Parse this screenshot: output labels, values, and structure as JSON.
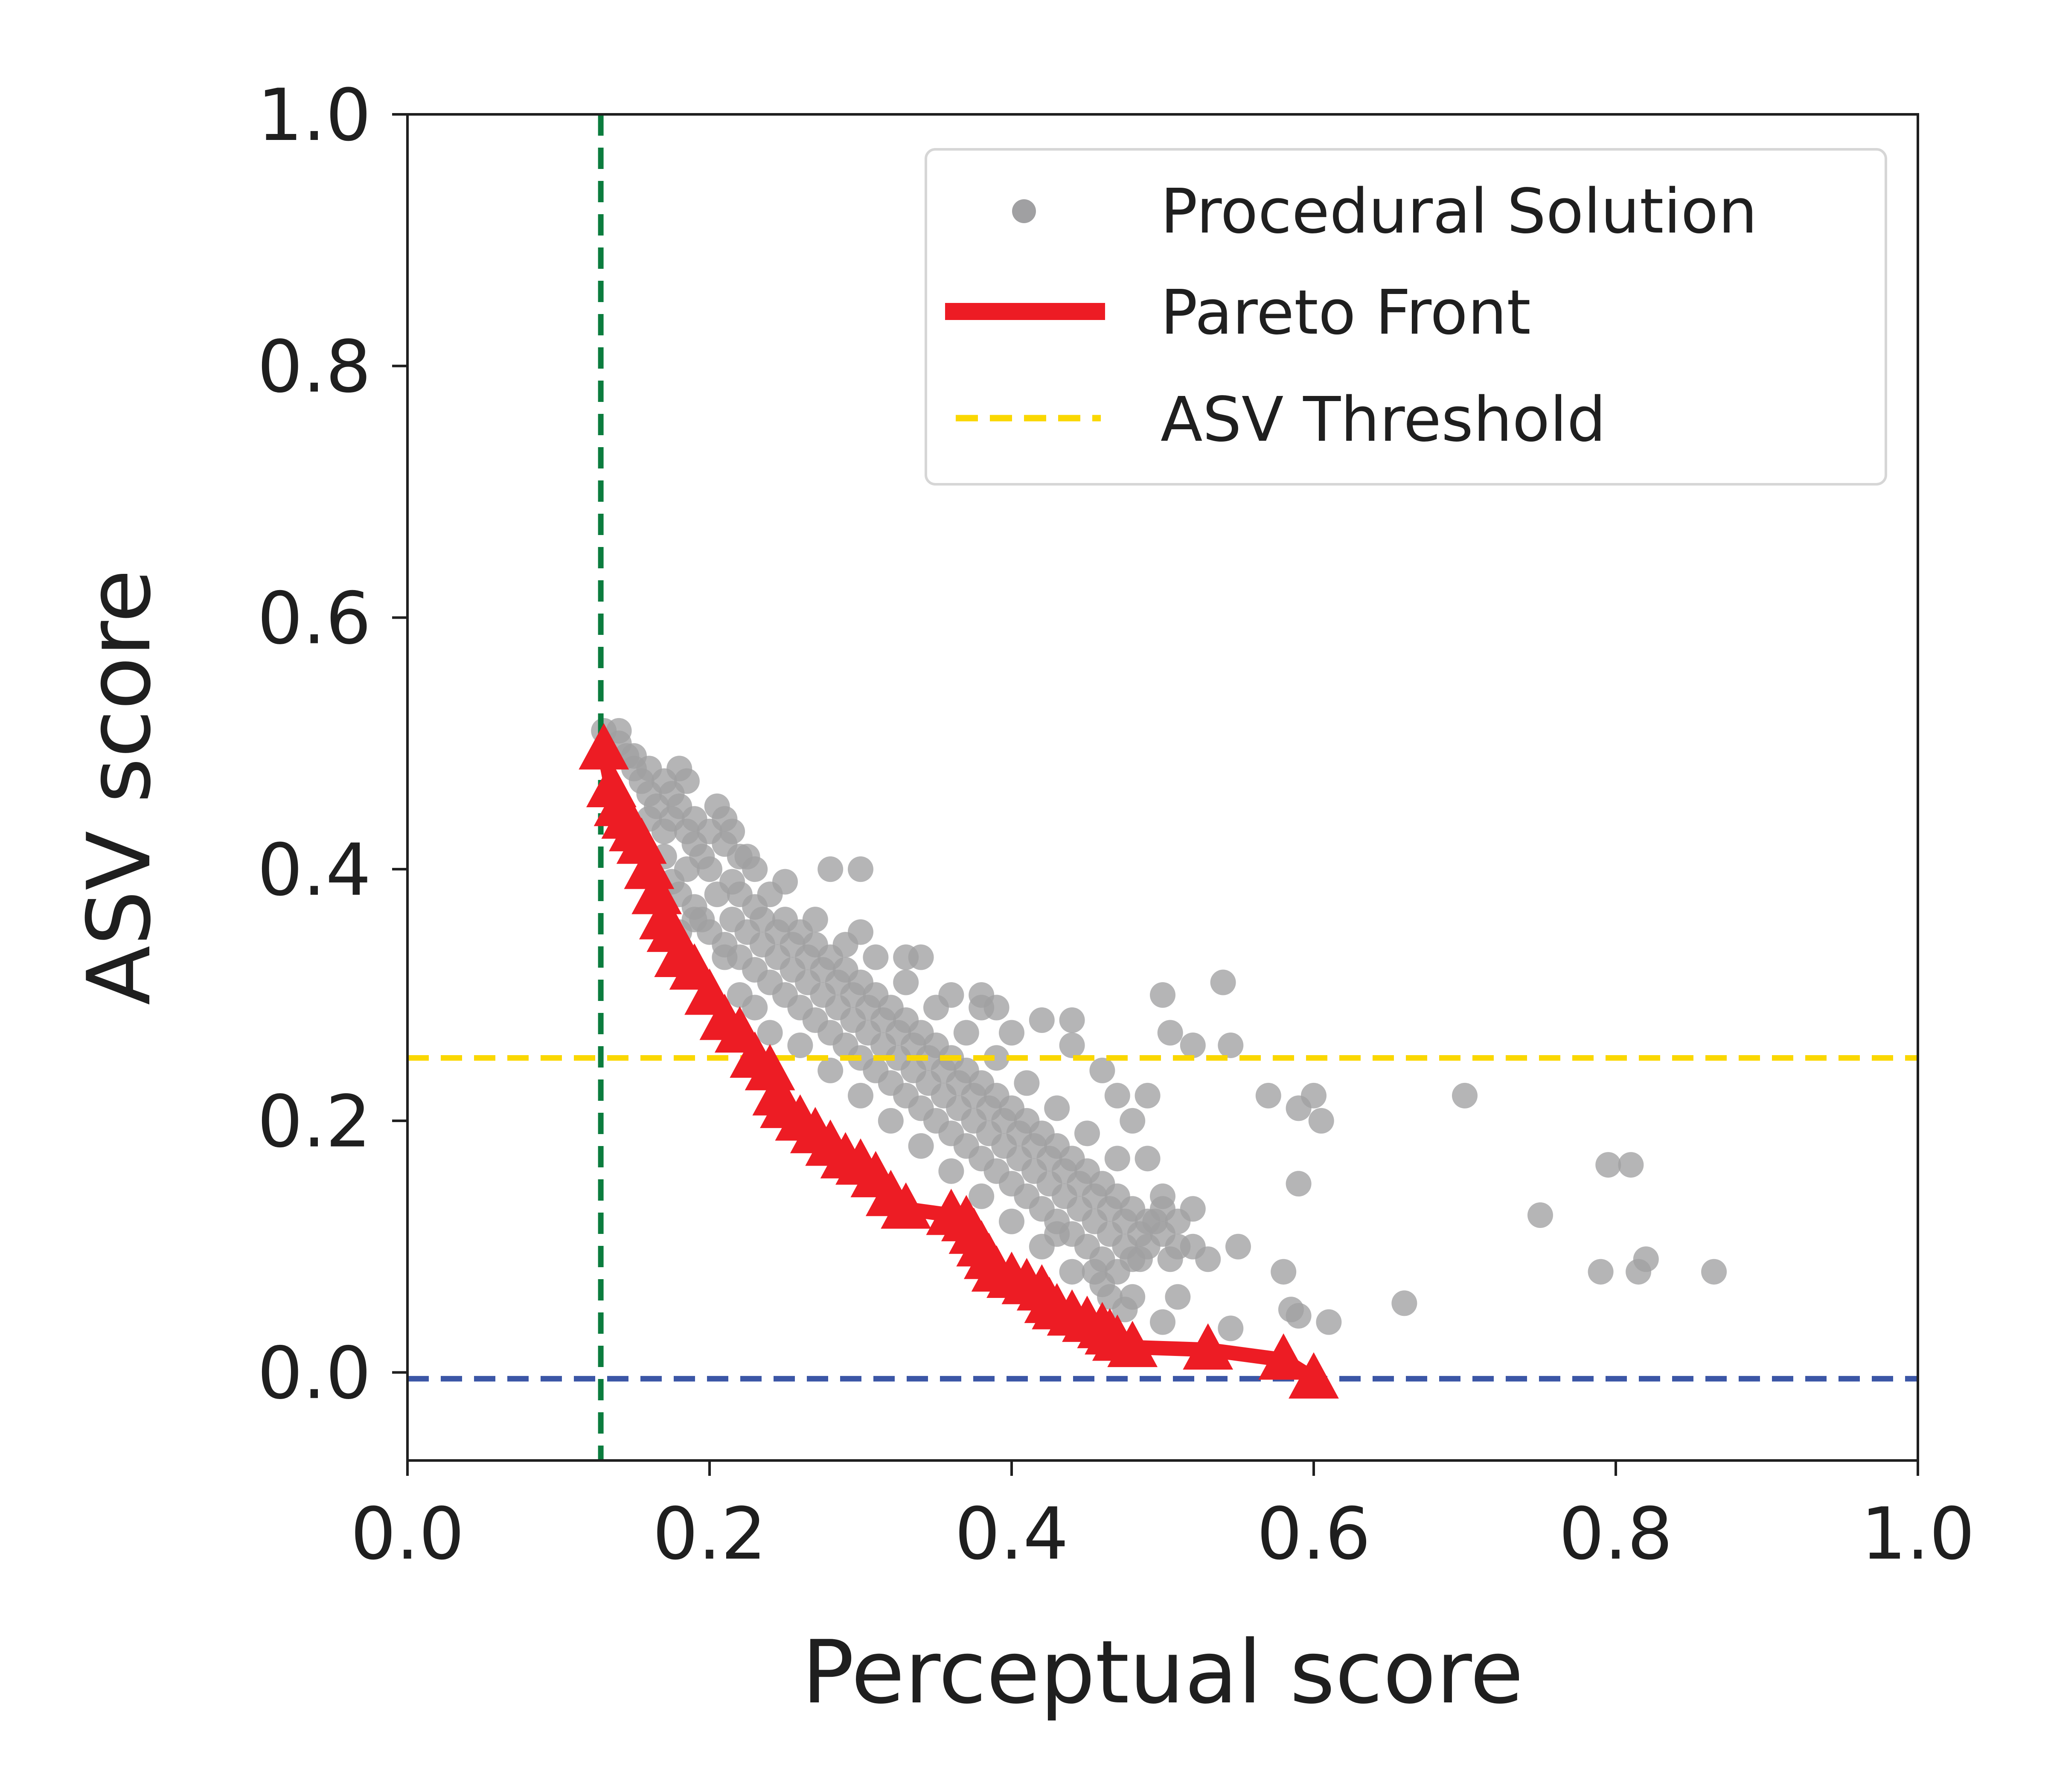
{
  "chart_data": {
    "type": "scatter",
    "title": "",
    "xlabel": "Perceptual score",
    "ylabel": "ASV score",
    "xlim": [
      0.0,
      1.0
    ],
    "ylim": [
      -0.07,
      1.0
    ],
    "x_ticks": [
      0.0,
      0.2,
      0.4,
      0.6,
      0.8,
      1.0
    ],
    "y_ticks": [
      0.0,
      0.2,
      0.4,
      0.6,
      0.8,
      1.0
    ],
    "x_tick_labels": [
      "0.0",
      "0.2",
      "0.4",
      "0.6",
      "0.8",
      "1.0"
    ],
    "y_tick_labels": [
      "0.0",
      "0.2",
      "0.4",
      "0.6",
      "0.8",
      "1.0"
    ],
    "grid": false,
    "legend_position": "upper right",
    "series": [
      {
        "name": "Procedural Solution",
        "kind": "scatter",
        "color": "#a0a0a2",
        "points": [
          [
            0.13,
            0.51
          ],
          [
            0.14,
            0.5
          ],
          [
            0.145,
            0.49
          ],
          [
            0.15,
            0.48
          ],
          [
            0.155,
            0.47
          ],
          [
            0.16,
            0.46
          ],
          [
            0.165,
            0.45
          ],
          [
            0.17,
            0.47
          ],
          [
            0.175,
            0.44
          ],
          [
            0.18,
            0.48
          ],
          [
            0.185,
            0.43
          ],
          [
            0.19,
            0.42
          ],
          [
            0.195,
            0.41
          ],
          [
            0.2,
            0.4
          ],
          [
            0.205,
            0.45
          ],
          [
            0.21,
            0.44
          ],
          [
            0.215,
            0.39
          ],
          [
            0.22,
            0.38
          ],
          [
            0.225,
            0.41
          ],
          [
            0.23,
            0.37
          ],
          [
            0.17,
            0.41
          ],
          [
            0.175,
            0.39
          ],
          [
            0.18,
            0.38
          ],
          [
            0.185,
            0.4
          ],
          [
            0.19,
            0.37
          ],
          [
            0.195,
            0.36
          ],
          [
            0.2,
            0.35
          ],
          [
            0.205,
            0.38
          ],
          [
            0.21,
            0.34
          ],
          [
            0.215,
            0.36
          ],
          [
            0.22,
            0.33
          ],
          [
            0.225,
            0.35
          ],
          [
            0.23,
            0.32
          ],
          [
            0.235,
            0.34
          ],
          [
            0.24,
            0.31
          ],
          [
            0.245,
            0.33
          ],
          [
            0.25,
            0.3
          ],
          [
            0.255,
            0.32
          ],
          [
            0.26,
            0.29
          ],
          [
            0.265,
            0.31
          ],
          [
            0.27,
            0.28
          ],
          [
            0.275,
            0.3
          ],
          [
            0.28,
            0.27
          ],
          [
            0.285,
            0.29
          ],
          [
            0.29,
            0.26
          ],
          [
            0.295,
            0.28
          ],
          [
            0.3,
            0.25
          ],
          [
            0.305,
            0.27
          ],
          [
            0.31,
            0.24
          ],
          [
            0.315,
            0.26
          ],
          [
            0.32,
            0.23
          ],
          [
            0.325,
            0.25
          ],
          [
            0.33,
            0.22
          ],
          [
            0.335,
            0.24
          ],
          [
            0.34,
            0.21
          ],
          [
            0.345,
            0.23
          ],
          [
            0.35,
            0.2
          ],
          [
            0.355,
            0.22
          ],
          [
            0.36,
            0.19
          ],
          [
            0.365,
            0.21
          ],
          [
            0.37,
            0.18
          ],
          [
            0.375,
            0.2
          ],
          [
            0.38,
            0.17
          ],
          [
            0.385,
            0.19
          ],
          [
            0.39,
            0.16
          ],
          [
            0.395,
            0.18
          ],
          [
            0.4,
            0.15
          ],
          [
            0.405,
            0.17
          ],
          [
            0.41,
            0.14
          ],
          [
            0.415,
            0.16
          ],
          [
            0.42,
            0.13
          ],
          [
            0.425,
            0.15
          ],
          [
            0.43,
            0.12
          ],
          [
            0.435,
            0.14
          ],
          [
            0.44,
            0.11
          ],
          [
            0.445,
            0.13
          ],
          [
            0.45,
            0.1
          ],
          [
            0.455,
            0.12
          ],
          [
            0.46,
            0.09
          ],
          [
            0.465,
            0.11
          ],
          [
            0.47,
            0.08
          ],
          [
            0.475,
            0.1
          ],
          [
            0.48,
            0.09
          ],
          [
            0.485,
            0.11
          ],
          [
            0.49,
            0.1
          ],
          [
            0.495,
            0.12
          ],
          [
            0.5,
            0.11
          ],
          [
            0.505,
            0.09
          ],
          [
            0.51,
            0.1
          ],
          [
            0.5,
            0.13
          ],
          [
            0.23,
            0.4
          ],
          [
            0.24,
            0.38
          ],
          [
            0.25,
            0.36
          ],
          [
            0.26,
            0.35
          ],
          [
            0.27,
            0.34
          ],
          [
            0.28,
            0.33
          ],
          [
            0.29,
            0.32
          ],
          [
            0.3,
            0.31
          ],
          [
            0.31,
            0.3
          ],
          [
            0.32,
            0.29
          ],
          [
            0.33,
            0.28
          ],
          [
            0.34,
            0.27
          ],
          [
            0.35,
            0.26
          ],
          [
            0.36,
            0.25
          ],
          [
            0.37,
            0.24
          ],
          [
            0.38,
            0.23
          ],
          [
            0.39,
            0.22
          ],
          [
            0.4,
            0.21
          ],
          [
            0.41,
            0.2
          ],
          [
            0.42,
            0.19
          ],
          [
            0.43,
            0.18
          ],
          [
            0.44,
            0.17
          ],
          [
            0.45,
            0.16
          ],
          [
            0.46,
            0.15
          ],
          [
            0.47,
            0.14
          ],
          [
            0.48,
            0.13
          ],
          [
            0.49,
            0.12
          ],
          [
            0.2,
            0.43
          ],
          [
            0.21,
            0.42
          ],
          [
            0.22,
            0.41
          ],
          [
            0.25,
            0.39
          ],
          [
            0.27,
            0.36
          ],
          [
            0.29,
            0.34
          ],
          [
            0.31,
            0.33
          ],
          [
            0.33,
            0.31
          ],
          [
            0.35,
            0.29
          ],
          [
            0.37,
            0.27
          ],
          [
            0.39,
            0.25
          ],
          [
            0.41,
            0.23
          ],
          [
            0.43,
            0.21
          ],
          [
            0.45,
            0.19
          ],
          [
            0.47,
            0.17
          ],
          [
            0.24,
            0.27
          ],
          [
            0.26,
            0.26
          ],
          [
            0.28,
            0.24
          ],
          [
            0.3,
            0.22
          ],
          [
            0.32,
            0.2
          ],
          [
            0.34,
            0.18
          ],
          [
            0.36,
            0.16
          ],
          [
            0.38,
            0.14
          ],
          [
            0.4,
            0.12
          ],
          [
            0.42,
            0.1
          ],
          [
            0.44,
            0.08
          ],
          [
            0.46,
            0.07
          ],
          [
            0.48,
            0.06
          ],
          [
            0.21,
            0.33
          ],
          [
            0.22,
            0.3
          ],
          [
            0.23,
            0.29
          ],
          [
            0.19,
            0.36
          ],
          [
            0.18,
            0.35
          ],
          [
            0.28,
            0.4
          ],
          [
            0.3,
            0.35
          ],
          [
            0.34,
            0.33
          ],
          [
            0.36,
            0.3
          ],
          [
            0.38,
            0.29
          ],
          [
            0.4,
            0.27
          ],
          [
            0.42,
            0.28
          ],
          [
            0.44,
            0.26
          ],
          [
            0.46,
            0.24
          ],
          [
            0.47,
            0.22
          ],
          [
            0.49,
            0.22
          ],
          [
            0.48,
            0.2
          ],
          [
            0.49,
            0.17
          ],
          [
            0.5,
            0.14
          ],
          [
            0.51,
            0.12
          ],
          [
            0.52,
            0.13
          ],
          [
            0.52,
            0.1
          ],
          [
            0.53,
            0.09
          ],
          [
            0.51,
            0.06
          ],
          [
            0.5,
            0.04
          ],
          [
            0.16,
            0.44
          ],
          [
            0.17,
            0.43
          ],
          [
            0.18,
            0.45
          ],
          [
            0.19,
            0.44
          ],
          [
            0.16,
            0.48
          ],
          [
            0.15,
            0.49
          ],
          [
            0.14,
            0.51
          ],
          [
            0.175,
            0.46
          ],
          [
            0.185,
            0.47
          ],
          [
            0.215,
            0.43
          ],
          [
            0.235,
            0.36
          ],
          [
            0.245,
            0.35
          ],
          [
            0.255,
            0.34
          ],
          [
            0.265,
            0.33
          ],
          [
            0.275,
            0.32
          ],
          [
            0.285,
            0.31
          ],
          [
            0.295,
            0.3
          ],
          [
            0.305,
            0.29
          ],
          [
            0.315,
            0.28
          ],
          [
            0.325,
            0.27
          ],
          [
            0.335,
            0.26
          ],
          [
            0.345,
            0.25
          ],
          [
            0.355,
            0.24
          ],
          [
            0.365,
            0.23
          ],
          [
            0.375,
            0.22
          ],
          [
            0.385,
            0.21
          ],
          [
            0.395,
            0.2
          ],
          [
            0.405,
            0.19
          ],
          [
            0.415,
            0.18
          ],
          [
            0.425,
            0.17
          ],
          [
            0.435,
            0.16
          ],
          [
            0.445,
            0.15
          ],
          [
            0.455,
            0.14
          ],
          [
            0.465,
            0.13
          ],
          [
            0.475,
            0.12
          ],
          [
            0.485,
            0.09
          ],
          [
            0.455,
            0.08
          ],
          [
            0.465,
            0.06
          ],
          [
            0.475,
            0.05
          ],
          [
            0.43,
            0.11
          ],
          [
            0.54,
            0.31
          ],
          [
            0.545,
            0.26
          ],
          [
            0.5,
            0.3
          ],
          [
            0.505,
            0.27
          ],
          [
            0.52,
            0.26
          ],
          [
            0.57,
            0.22
          ],
          [
            0.59,
            0.21
          ],
          [
            0.6,
            0.22
          ],
          [
            0.605,
            0.2
          ],
          [
            0.59,
            0.15
          ],
          [
            0.55,
            0.1
          ],
          [
            0.58,
            0.08
          ],
          [
            0.585,
            0.05
          ],
          [
            0.59,
            0.045
          ],
          [
            0.61,
            0.04
          ],
          [
            0.545,
            0.035
          ],
          [
            0.66,
            0.055
          ],
          [
            0.7,
            0.22
          ],
          [
            0.75,
            0.125
          ],
          [
            0.79,
            0.08
          ],
          [
            0.795,
            0.165
          ],
          [
            0.81,
            0.165
          ],
          [
            0.815,
            0.08
          ],
          [
            0.82,
            0.09
          ],
          [
            0.865,
            0.08
          ],
          [
            0.3,
            0.4
          ],
          [
            0.33,
            0.33
          ],
          [
            0.38,
            0.3
          ],
          [
            0.44,
            0.28
          ],
          [
            0.39,
            0.29
          ]
        ]
      },
      {
        "name": "Pareto Front",
        "kind": "line",
        "marker": "triangle",
        "color": "#ed1c24",
        "points": [
          [
            0.13,
            0.495
          ],
          [
            0.135,
            0.465
          ],
          [
            0.14,
            0.45
          ],
          [
            0.145,
            0.44
          ],
          [
            0.15,
            0.43
          ],
          [
            0.155,
            0.42
          ],
          [
            0.16,
            0.4
          ],
          [
            0.165,
            0.38
          ],
          [
            0.17,
            0.36
          ],
          [
            0.175,
            0.35
          ],
          [
            0.18,
            0.33
          ],
          [
            0.19,
            0.32
          ],
          [
            0.2,
            0.3
          ],
          [
            0.21,
            0.28
          ],
          [
            0.22,
            0.27
          ],
          [
            0.23,
            0.25
          ],
          [
            0.24,
            0.24
          ],
          [
            0.245,
            0.22
          ],
          [
            0.25,
            0.21
          ],
          [
            0.26,
            0.2
          ],
          [
            0.27,
            0.19
          ],
          [
            0.28,
            0.18
          ],
          [
            0.29,
            0.17
          ],
          [
            0.3,
            0.165
          ],
          [
            0.31,
            0.155
          ],
          [
            0.32,
            0.14
          ],
          [
            0.33,
            0.13
          ],
          [
            0.36,
            0.125
          ],
          [
            0.37,
            0.12
          ],
          [
            0.375,
            0.11
          ],
          [
            0.38,
            0.1
          ],
          [
            0.385,
            0.09
          ],
          [
            0.39,
            0.08
          ],
          [
            0.4,
            0.075
          ],
          [
            0.41,
            0.07
          ],
          [
            0.42,
            0.065
          ],
          [
            0.425,
            0.055
          ],
          [
            0.43,
            0.05
          ],
          [
            0.44,
            0.045
          ],
          [
            0.45,
            0.04
          ],
          [
            0.46,
            0.035
          ],
          [
            0.465,
            0.03
          ],
          [
            0.47,
            0.025
          ],
          [
            0.48,
            0.02
          ],
          [
            0.53,
            0.018
          ],
          [
            0.58,
            0.01
          ],
          [
            0.6,
            -0.005
          ]
        ]
      },
      {
        "name": "ASV Threshold",
        "kind": "hline",
        "style": "dashed",
        "color": "#fad700",
        "y": 0.25
      },
      {
        "kind": "hline",
        "style": "dashed",
        "color": "#3b56a6",
        "y": -0.005
      },
      {
        "kind": "vline",
        "style": "dashed",
        "color": "#0b7c3e",
        "x": 0.128
      }
    ],
    "legend": [
      {
        "label": "Procedural Solution",
        "symbol": "dot",
        "color": "#a0a0a2"
      },
      {
        "label": "Pareto Front",
        "symbol": "line",
        "color": "#ed1c24"
      },
      {
        "label": "ASV Threshold",
        "symbol": "dash",
        "color": "#fad700"
      }
    ]
  }
}
